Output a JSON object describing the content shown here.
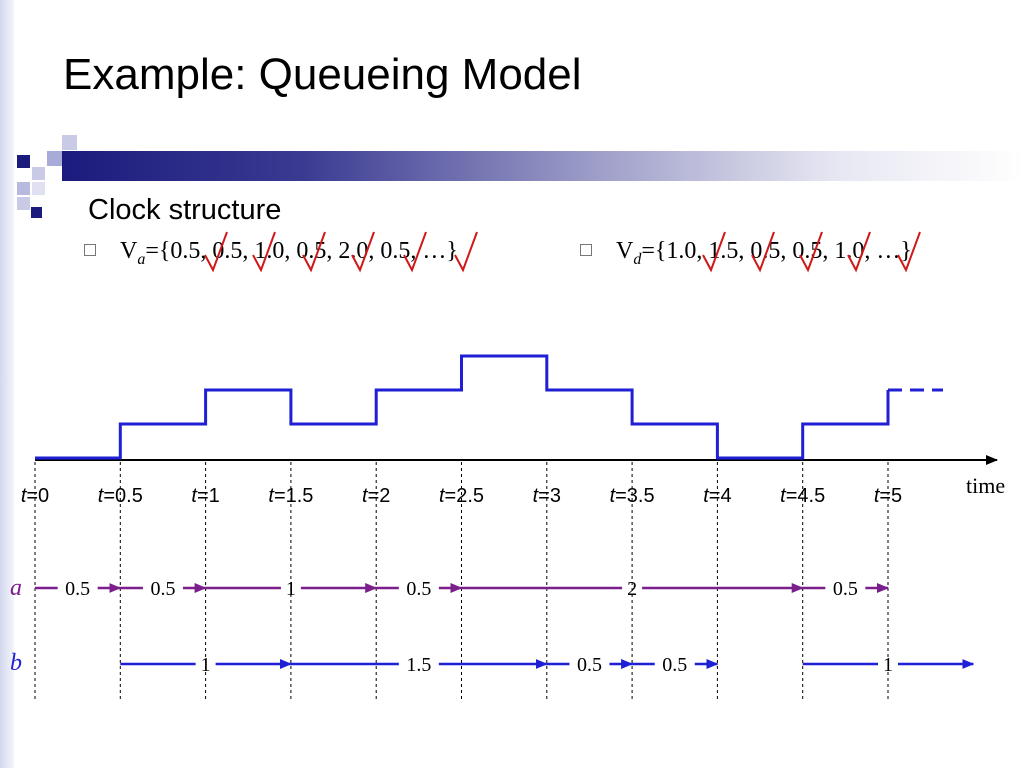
{
  "slide": {
    "title": "Example: Queueing Model",
    "bullet": "Clock structure",
    "va_prefix": "V",
    "va_sub": "a",
    "va_values": "={0.5, 0.5, 1.0, 0.5, 2.0, 0.5, …}",
    "vd_prefix": "V",
    "vd_sub": "d",
    "vd_values": "={1.0, 1.5, 0.5, 0.5, 1.0, …}"
  },
  "diagram": {
    "axis_label": "time",
    "time_ticks": [
      "0",
      "0.5",
      "1",
      "1.5",
      "2",
      "2.5",
      "3",
      "3.5",
      "4",
      "4.5",
      "5"
    ],
    "time_var": "t",
    "queue_levels": [
      0,
      1,
      2,
      1,
      2,
      3,
      2,
      1,
      0,
      1,
      2
    ],
    "row_a_label": "a",
    "row_b_label": "b",
    "row_a_intervals": [
      {
        "from": 0,
        "to": 0.5,
        "label": "0.5"
      },
      {
        "from": 0.5,
        "to": 1,
        "label": "0.5"
      },
      {
        "from": 1,
        "to": 2,
        "label": "1"
      },
      {
        "from": 2,
        "to": 2.5,
        "label": "0.5"
      },
      {
        "from": 2.5,
        "to": 4.5,
        "label": "2"
      },
      {
        "from": 4.5,
        "to": 5,
        "label": "0.5"
      }
    ],
    "row_b_intervals": [
      {
        "from": 0.5,
        "to": 1.5,
        "label": "1"
      },
      {
        "from": 1.5,
        "to": 3,
        "label": "1.5"
      },
      {
        "from": 3,
        "to": 3.5,
        "label": "0.5"
      },
      {
        "from": 3.5,
        "to": 4,
        "label": "0.5"
      },
      {
        "from": 4.5,
        "to": 5.5,
        "label": "1"
      }
    ],
    "colors": {
      "queue": "#1f1fd6",
      "row_a": "#7a1f8c",
      "row_b": "#1f1fd6",
      "check": "#d01818",
      "axis": "#000000"
    }
  }
}
